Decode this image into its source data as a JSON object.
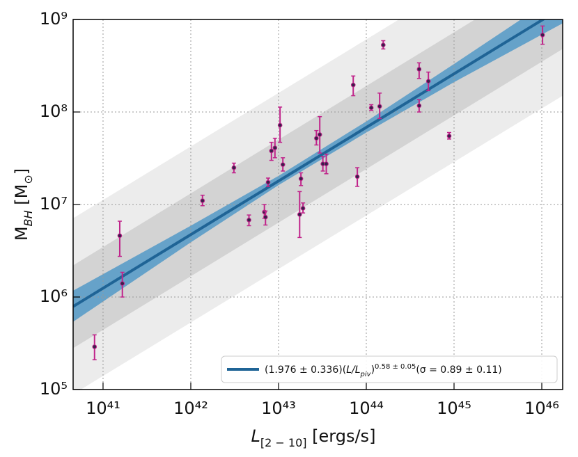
{
  "chart_data": {
    "type": "scatter",
    "x_label": [
      "L",
      "[2 − 10]",
      " [ergs/s]"
    ],
    "y_label": [
      "M",
      "BH",
      " [M",
      "⊙",
      "]"
    ],
    "xscale": "log",
    "yscale": "log",
    "grid": true,
    "legend": "lower right",
    "xlim": [
      4.56e+40,
      1.73e+46
    ],
    "ylim": [
      100000.0,
      1000000000.0
    ],
    "xticks": [
      {
        "value": 1e+41,
        "label": "10⁴¹"
      },
      {
        "value": 1e+42,
        "label": "10⁴²"
      },
      {
        "value": 1e+43,
        "label": "10⁴³"
      },
      {
        "value": 1e+44,
        "label": "10⁴⁴"
      },
      {
        "value": 1e+45,
        "label": "10⁴⁵"
      },
      {
        "value": 1e+46,
        "label": "10⁴⁶"
      }
    ],
    "yticks": [
      {
        "value": 100000.0,
        "label": "10⁵"
      },
      {
        "value": 1000000.0,
        "label": "10⁶"
      },
      {
        "value": 10000000.0,
        "label": "10⁷"
      },
      {
        "value": 100000000.0,
        "label": "10⁸"
      },
      {
        "value": 1000000000.0,
        "label": "10⁹"
      }
    ],
    "bands": [
      {
        "color": "#ececec",
        "x": [
          4.56e+40,
          1.73e+46
        ],
        "upper": [
          7100000.0,
          12000000000.0
        ],
        "lower": [
          89000.0,
          150000000.0
        ]
      },
      {
        "color": "#d3d3d3",
        "x": [
          4.56e+40,
          1.73e+46
        ],
        "upper": [
          2200000.0,
          3800000000.0
        ],
        "lower": [
          280000.0,
          480000000.0
        ]
      },
      {
        "color": "#5a9cc8",
        "x": [
          4.56e+40,
          1e+42,
          1e+43,
          1e+44,
          1e+45,
          1.73e+46
        ],
        "upper": [
          1170000.0,
          5900000.0,
          20400000.0,
          79000000.0,
          330000000.0,
          2000000000.0
        ],
        "lower": [
          540000.0,
          3900000.0,
          16200000.0,
          60000000.0,
          210000000.0,
          910000000.0
        ]
      }
    ],
    "fit": {
      "color": "#1f6496",
      "x": [
        4.56e+40,
        1.73e+46
      ],
      "values": [
        790000.0,
        1350000000.0
      ],
      "label_parts": [
        "(1.976 ± 0.336)(",
        "L",
        "/",
        "L",
        "piv",
        ")",
        "0.58 ± 0.05",
        "(σ = 0.89 ± 0.11)"
      ]
    },
    "series": [
      {
        "color": "#3a1f4a",
        "error_color": "#c0238a",
        "x": [
          8e+40,
          1.55e+41,
          1.66e+41,
          1.36e+42,
          3.1e+42,
          4.6e+42,
          6.9e+42,
          7.1e+42,
          7.6e+42,
          8.3e+42,
          9.1e+42,
          1.04e+43,
          1.12e+43,
          1.74e+43,
          1.8e+43,
          1.9e+43,
          2.7e+43,
          2.95e+43,
          3.2e+43,
          3.5e+43,
          7.1e+43,
          7.9e+43,
          1.14e+44,
          1.42e+44,
          1.56e+44,
          4e+44,
          4e+44,
          5.1e+44,
          8.8e+44,
          1.02e+46
        ],
        "values": [
          290000.0,
          4600000.0,
          1400000.0,
          11000000.0,
          25000000.0,
          6800000.0,
          8300000.0,
          7300000.0,
          17400000.0,
          38000000.0,
          41000000.0,
          72000000.0,
          27000000.0,
          7800000.0,
          19000000.0,
          9100000.0,
          52000000.0,
          57000000.0,
          27500000.0,
          27500000.0,
          196000000.0,
          20000000.0,
          111000000.0,
          115000000.0,
          530000000.0,
          290000000.0,
          117000000.0,
          215000000.0,
          55000000.0,
          680000000.0
        ],
        "err_high": [
          390000.0,
          6600000.0,
          1850000.0,
          12600000.0,
          28000000.0,
          7700000.0,
          10000000.0,
          8500000.0,
          19300000.0,
          47000000.0,
          52000000.0,
          113000000.0,
          32000000.0,
          13800000.0,
          22000000.0,
          10400000.0,
          63000000.0,
          89000000.0,
          33000000.0,
          35000000.0,
          245000000.0,
          25000000.0,
          120000000.0,
          160000000.0,
          590000000.0,
          340000000.0,
          136000000.0,
          270000000.0,
          60000000.0,
          850000000.0
        ],
        "err_low": [
          210000.0,
          2750000.0,
          1000000.0,
          9700000.0,
          22000000.0,
          5900000.0,
          7100000.0,
          6000000.0,
          15700000.0,
          30000000.0,
          32000000.0,
          47000000.0,
          23000000.0,
          4400000.0,
          16000000.0,
          8100000.0,
          44000000.0,
          36000000.0,
          23000000.0,
          21500000.0,
          150000000.0,
          15700000.0,
          104000000.0,
          85000000.0,
          480000000.0,
          230000000.0,
          100000000.0,
          170000000.0,
          51000000.0,
          540000000.0
        ]
      }
    ]
  }
}
